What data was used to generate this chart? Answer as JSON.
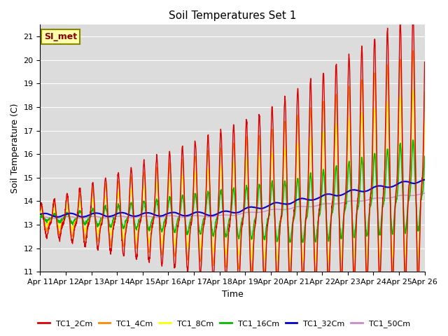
{
  "title": "Soil Temperatures Set 1",
  "xlabel": "Time",
  "ylabel": "Soil Temperature (C)",
  "ylim": [
    11.0,
    21.5
  ],
  "yticks": [
    11.0,
    12.0,
    13.0,
    14.0,
    15.0,
    16.0,
    17.0,
    18.0,
    19.0,
    20.0,
    21.0
  ],
  "bg_color": "#dcdcdc",
  "fig_color": "#ffffff",
  "grid_color": "#ffffff",
  "series_colors": {
    "TC1_2Cm": "#dd0000",
    "TC1_4Cm": "#ff8800",
    "TC1_8Cm": "#ffff00",
    "TC1_16Cm": "#00bb00",
    "TC1_32Cm": "#0000cc",
    "TC1_50Cm": "#cc88cc"
  },
  "annotation_text": "SI_met",
  "annotation_box_color": "#ffffaa",
  "annotation_border_color": "#888800",
  "annotation_text_color": "#880000",
  "date_labels": [
    "Apr 11",
    "Apr 12",
    "Apr 13",
    "Apr 14",
    "Apr 15",
    "Apr 16",
    "Apr 17",
    "Apr 18",
    "Apr 19",
    "Apr 20",
    "Apr 21",
    "Apr 22",
    "Apr 23",
    "Apr 24",
    "Apr 25",
    "Apr 26"
  ]
}
